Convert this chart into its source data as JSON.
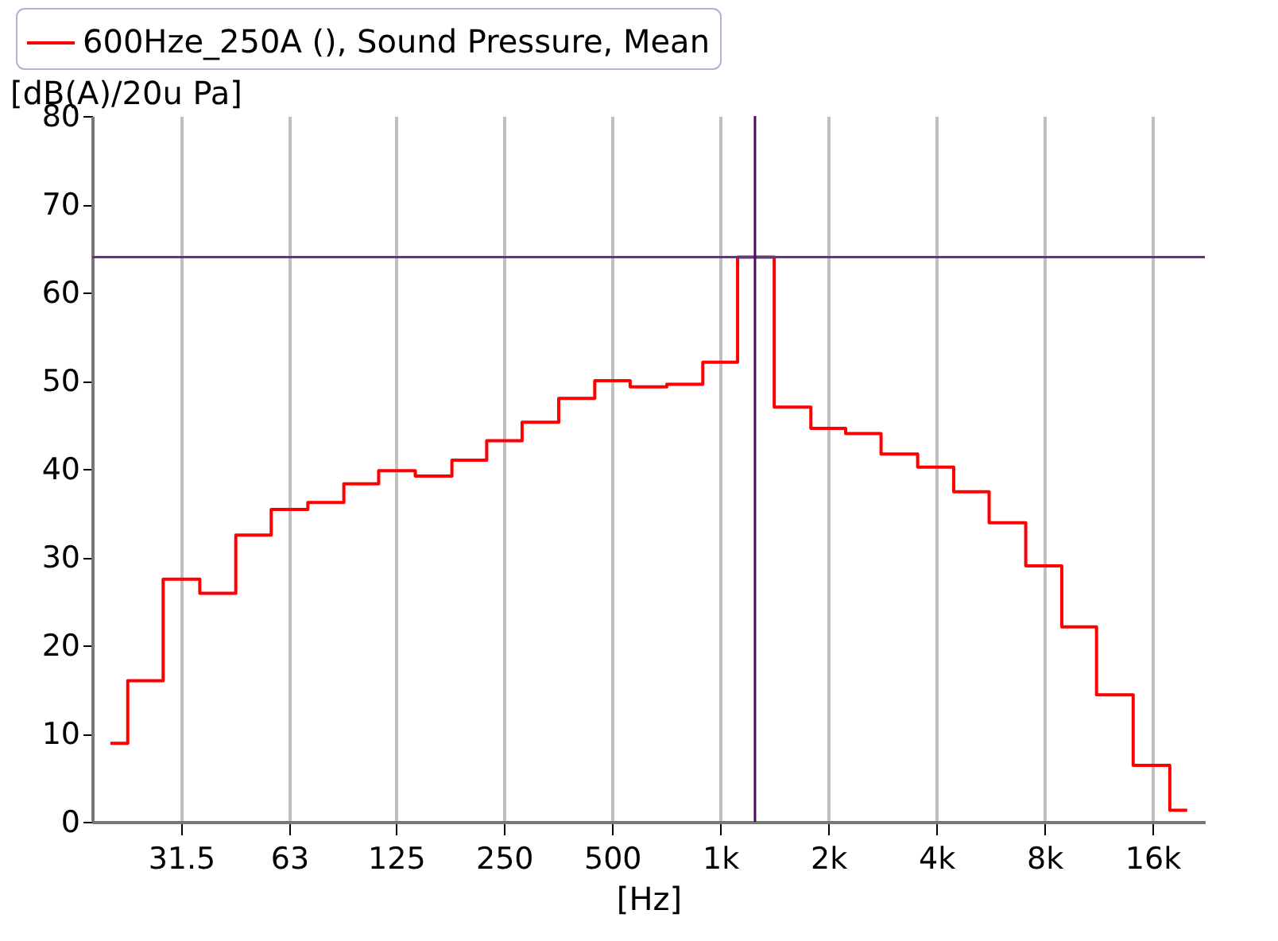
{
  "chart_data": {
    "type": "step",
    "xlabel": "[Hz]",
    "ylabel": "[dB(A)/20u Pa]",
    "x": [
      20,
      25,
      31.5,
      40,
      50,
      63,
      80,
      100,
      125,
      160,
      200,
      250,
      315,
      400,
      500,
      630,
      800,
      1000,
      1250,
      1600,
      2000,
      2500,
      3150,
      4000,
      5000,
      6300,
      8000,
      10000,
      12500,
      16000,
      20000
    ],
    "series": [
      {
        "name": "600Hze_250A (), Sound Pressure, Mean",
        "color": "#ff0000",
        "values": [
          8.9,
          16.0,
          27.5,
          25.9,
          32.5,
          35.4,
          36.2,
          38.3,
          39.8,
          39.2,
          41.0,
          43.2,
          45.3,
          48.0,
          50.0,
          49.3,
          49.6,
          52.1,
          64.0,
          47.0,
          44.6,
          44.0,
          41.7,
          40.2,
          37.4,
          33.9,
          29.0,
          22.1,
          14.4,
          6.4,
          1.3
        ]
      }
    ],
    "log": "x",
    "xlim": [
      17.8,
      22400
    ],
    "xticks": [
      31.5,
      63,
      125,
      250,
      500,
      {
        "value": 1000,
        "label": "1k"
      },
      {
        "value": 2000,
        "label": "2k"
      },
      {
        "value": 4000,
        "label": "4k"
      },
      {
        "value": 8000,
        "label": "8k"
      },
      {
        "value": 16000,
        "label": "16k"
      }
    ],
    "ylim": [
      0,
      80
    ],
    "yticks": [
      0,
      10,
      20,
      30,
      40,
      50,
      60,
      70,
      80
    ],
    "grid": "x",
    "legend": "top",
    "line_style": "solid",
    "marker": "none",
    "ref_lines": [
      {
        "axis": "y",
        "value": 64.0,
        "color": "#5e3a6e"
      },
      {
        "axis": "x",
        "value": 1250,
        "color": "#4b0a5a"
      }
    ]
  }
}
